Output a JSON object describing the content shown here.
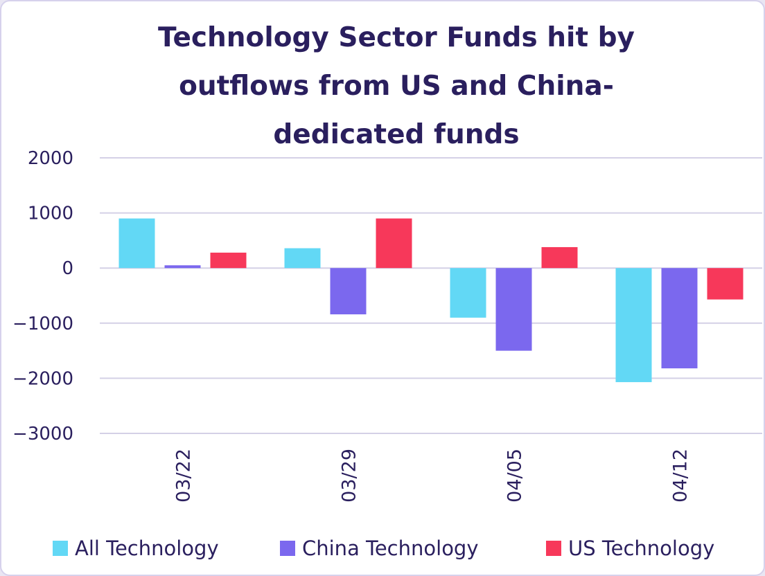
{
  "chart_data": {
    "type": "bar",
    "title": "Technology Sector Funds hit by outflows from US and China-dedicated funds",
    "categories": [
      "03/22",
      "03/29",
      "04/05",
      "04/12"
    ],
    "series": [
      {
        "name": "All Technology",
        "color": "#62d8f5",
        "values": [
          900,
          360,
          -900,
          -2070
        ]
      },
      {
        "name": "China Technology",
        "color": "#7b68ee",
        "values": [
          50,
          -840,
          -1500,
          -1820
        ]
      },
      {
        "name": "US Technology",
        "color": "#f7385a",
        "values": [
          280,
          900,
          380,
          -570
        ]
      }
    ],
    "yticks": [
      2000,
      1000,
      0,
      -1000,
      -2000,
      -3000
    ],
    "ylim": [
      -3000,
      2000
    ],
    "grid": true,
    "legend_position": "bottom"
  }
}
